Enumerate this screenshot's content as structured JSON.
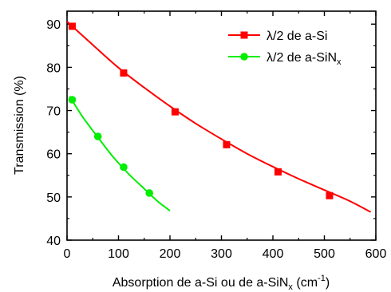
{
  "chart_data": {
    "type": "line",
    "xlabel": "Absorption de a-Si ou de a-SiN",
    "xlabel_sub": "x",
    "xlabel_unit": " (cm",
    "xlabel_sup": "-1",
    "xlabel_close": ")",
    "ylabel": "Transmission (%)",
    "xlim": [
      0,
      600
    ],
    "ylim": [
      40,
      93
    ],
    "x_ticks": [
      0,
      100,
      200,
      300,
      400,
      500,
      600
    ],
    "y_ticks": [
      40,
      50,
      60,
      70,
      80,
      90
    ],
    "legend_position": "top-right",
    "series": [
      {
        "name": "λ/2 de a-Si",
        "name_sub": "",
        "color": "#ff0000",
        "marker": "square",
        "points": [
          [
            10,
            89.5
          ],
          [
            110,
            78.7
          ],
          [
            210,
            69.7
          ],
          [
            310,
            62.1
          ],
          [
            410,
            55.8
          ],
          [
            510,
            50.3
          ]
        ],
        "curve": [
          [
            0,
            90.6
          ],
          [
            50,
            85.2
          ],
          [
            100,
            79.9
          ],
          [
            150,
            75.3
          ],
          [
            200,
            71.0
          ],
          [
            250,
            67.0
          ],
          [
            300,
            63.4
          ],
          [
            350,
            60.0
          ],
          [
            400,
            57.0
          ],
          [
            450,
            54.2
          ],
          [
            500,
            51.6
          ],
          [
            550,
            49.0
          ],
          [
            590,
            46.5
          ]
        ]
      },
      {
        "name": "λ/2 de a-SiN",
        "name_sub": "x",
        "color": "#00ee00",
        "marker": "circle",
        "points": [
          [
            10,
            72.5
          ],
          [
            60,
            64.0
          ],
          [
            110,
            56.9
          ],
          [
            160,
            50.9
          ]
        ],
        "curve": [
          [
            5,
            73.3
          ],
          [
            30,
            68.6
          ],
          [
            60,
            63.8
          ],
          [
            90,
            59.2
          ],
          [
            120,
            55.3
          ],
          [
            150,
            51.9
          ],
          [
            175,
            49.1
          ],
          [
            200,
            46.8
          ]
        ]
      }
    ]
  }
}
